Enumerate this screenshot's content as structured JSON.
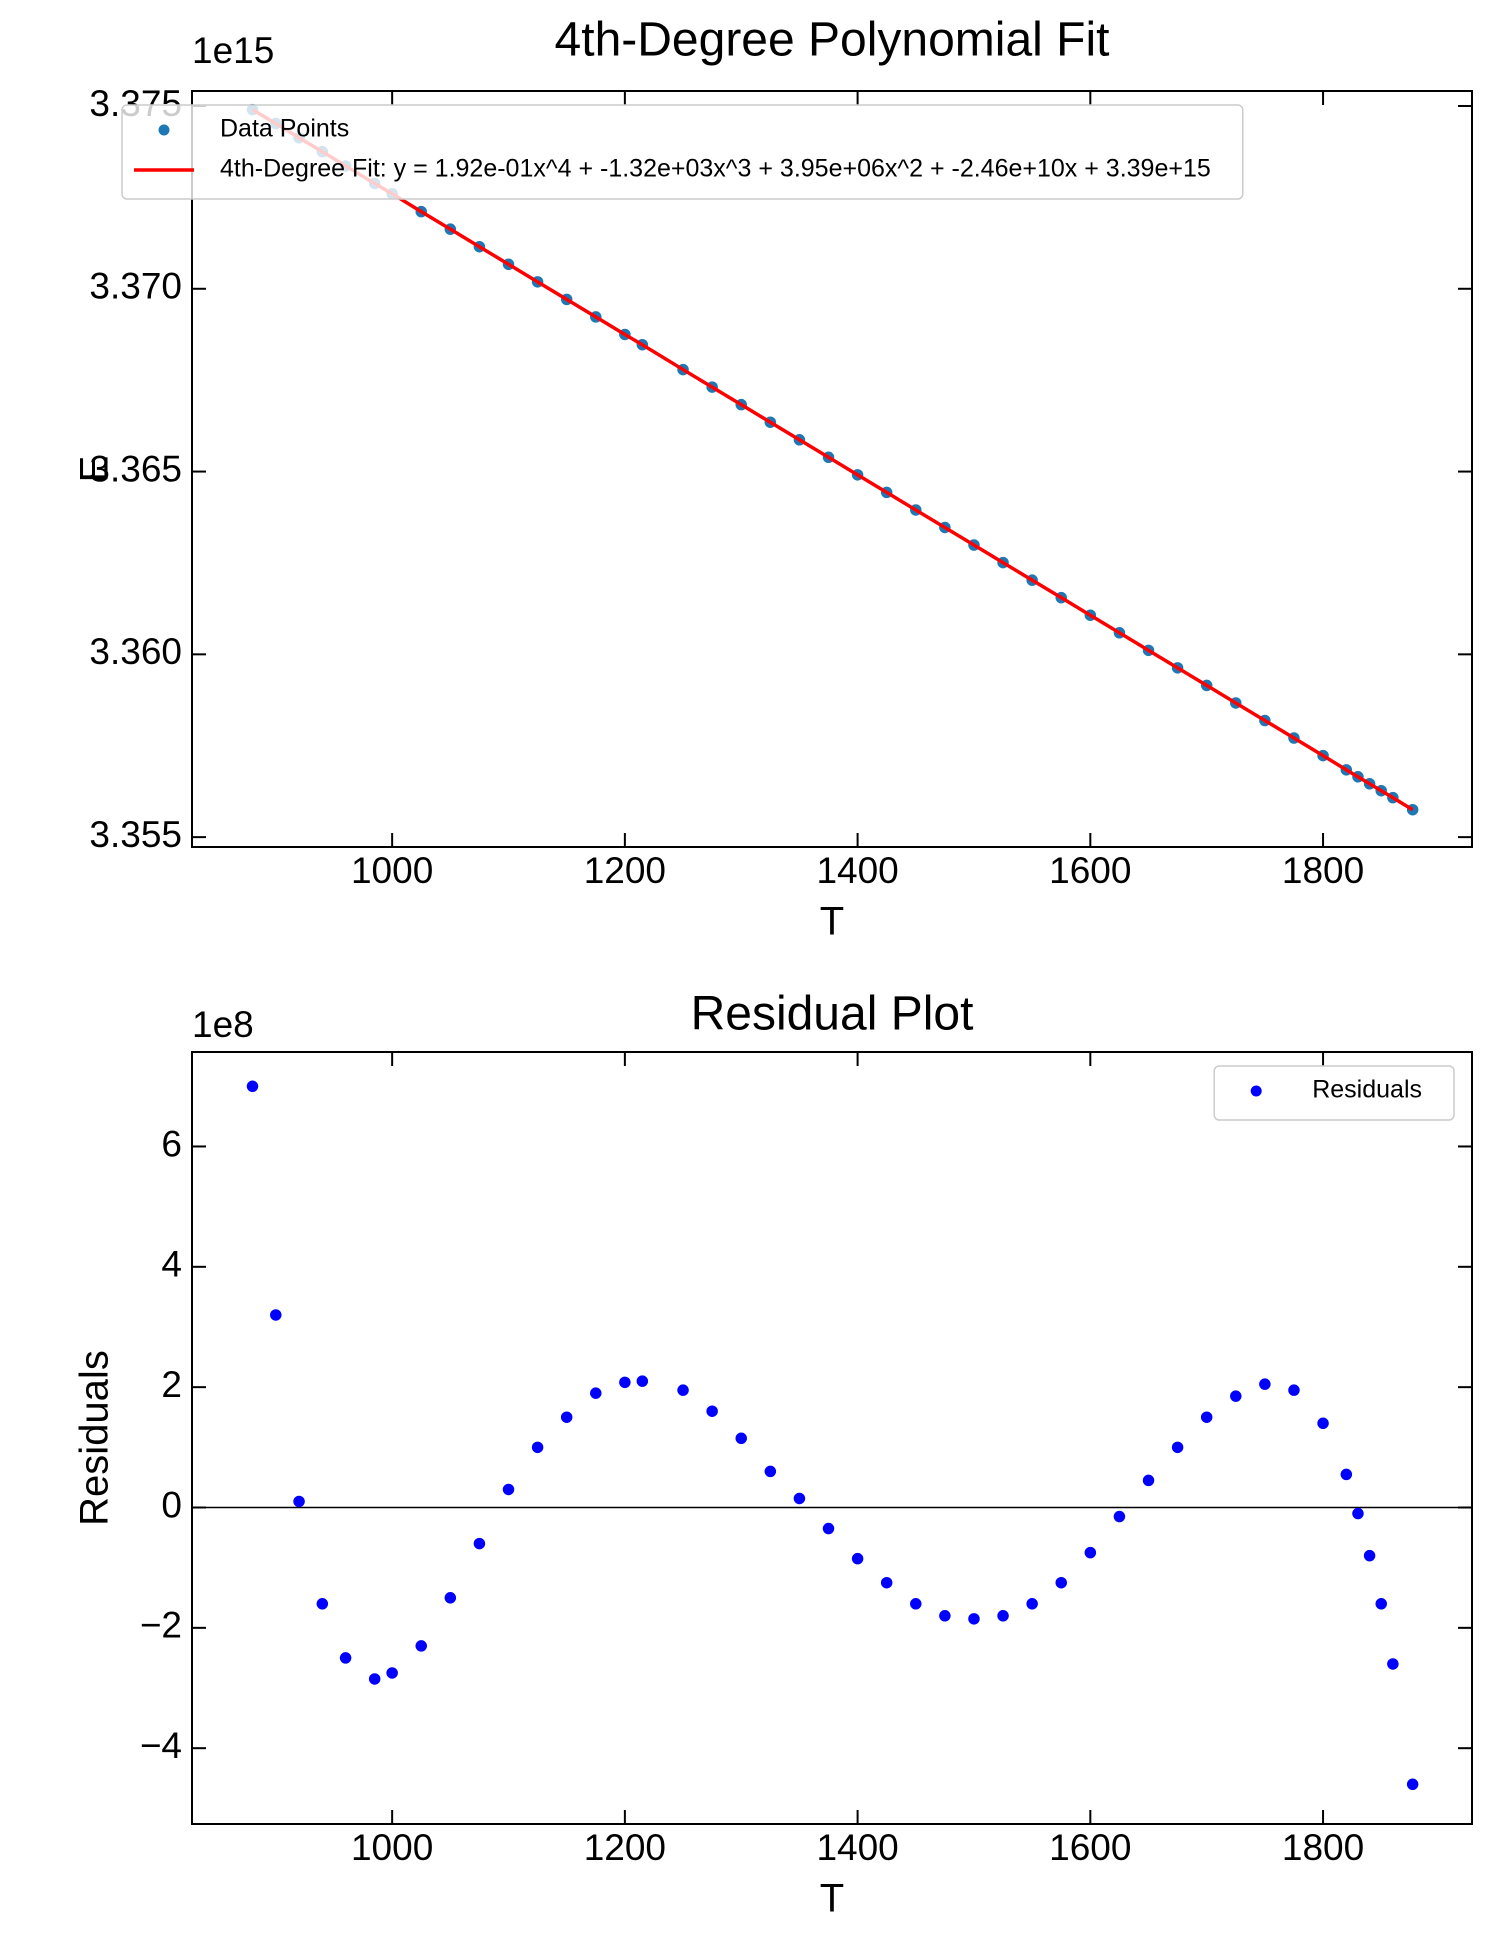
{
  "chart_data": [
    {
      "type": "scatter",
      "title": "4th-Degree Polynomial Fit",
      "x_label": "T",
      "y_label": "E",
      "y_offset_label": "1e15",
      "x": [
        880,
        900,
        920,
        940,
        960,
        985,
        1000,
        1025,
        1050,
        1075,
        1100,
        1125,
        1150,
        1175,
        1200,
        1215,
        1250,
        1275,
        1300,
        1325,
        1350,
        1375,
        1400,
        1425,
        1450,
        1475,
        1500,
        1525,
        1550,
        1575,
        1600,
        1625,
        1650,
        1675,
        1700,
        1725,
        1750,
        1775,
        1800,
        1820,
        1830,
        1840,
        1850,
        1860,
        1877
      ],
      "series": [
        {
          "name": "Data Points",
          "color": "#1f77b4",
          "mode": "markers",
          "values": [
            3.3749,
            3.37452,
            3.37413,
            3.37375,
            3.37336,
            3.37288,
            3.3726,
            3.37211,
            3.37163,
            3.37115,
            3.37067,
            3.37019,
            3.36971,
            3.36923,
            3.36875,
            3.36847,
            3.36779,
            3.36731,
            3.36683,
            3.36635,
            3.36587,
            3.36539,
            3.36491,
            3.36443,
            3.36395,
            3.36347,
            3.36299,
            3.36251,
            3.36203,
            3.36155,
            3.36107,
            3.36059,
            3.36011,
            3.35963,
            3.35915,
            3.35867,
            3.35819,
            3.35771,
            3.35723,
            3.35684,
            3.35665,
            3.35646,
            3.35627,
            3.35608,
            3.35575
          ]
        },
        {
          "name": "4th-Degree Fit: y = 1.92e-01x^4 + -1.32e+03x^3 + 3.95e+06x^2 + -2.46e+10x + 3.39e+15",
          "color": "#ff0000",
          "mode": "line",
          "values": [
            3.3749,
            3.37452,
            3.37413,
            3.37375,
            3.37336,
            3.37288,
            3.3726,
            3.37211,
            3.37163,
            3.37115,
            3.37067,
            3.37019,
            3.36971,
            3.36923,
            3.36875,
            3.36847,
            3.36779,
            3.36731,
            3.36683,
            3.36635,
            3.36587,
            3.36539,
            3.36491,
            3.36443,
            3.36395,
            3.36347,
            3.36299,
            3.36251,
            3.36203,
            3.36155,
            3.36107,
            3.36059,
            3.36011,
            3.35963,
            3.35915,
            3.35867,
            3.35819,
            3.35771,
            3.35723,
            3.35684,
            3.35665,
            3.35646,
            3.35627,
            3.35608,
            3.35575
          ]
        }
      ],
      "xlim": [
        828,
        1928
      ],
      "xticks": [
        1000,
        1200,
        1400,
        1600,
        1800
      ],
      "ylim": [
        3.35473,
        3.37541
      ],
      "yticks": [
        3.355,
        {
          "value": 3.36,
          "label": "3.360"
        },
        3.365,
        {
          "value": 3.37,
          "label": "3.370"
        },
        3.375
      ],
      "legend": "upper left"
    },
    {
      "type": "scatter",
      "title": "Residual Plot",
      "x_label": "T",
      "y_label": "Residuals",
      "y_offset_label": "1e8",
      "x": [
        880,
        900,
        920,
        940,
        960,
        985,
        1000,
        1025,
        1050,
        1075,
        1100,
        1125,
        1150,
        1175,
        1200,
        1215,
        1250,
        1275,
        1300,
        1325,
        1350,
        1375,
        1400,
        1425,
        1450,
        1475,
        1500,
        1525,
        1550,
        1575,
        1600,
        1625,
        1650,
        1675,
        1700,
        1725,
        1750,
        1775,
        1800,
        1820,
        1830,
        1840,
        1850,
        1860,
        1877
      ],
      "series": [
        {
          "name": "Residuals",
          "color": "#0000ff",
          "mode": "markers",
          "values": [
            7.0,
            3.2,
            0.1,
            -1.6,
            -2.5,
            -2.85,
            -2.75,
            -2.3,
            -1.5,
            -0.6,
            0.3,
            1.0,
            1.5,
            1.9,
            2.08,
            2.1,
            1.95,
            1.6,
            1.15,
            0.6,
            0.15,
            -0.35,
            -0.85,
            -1.25,
            -1.6,
            -1.8,
            -1.85,
            -1.8,
            -1.6,
            -1.25,
            -0.75,
            -0.15,
            0.45,
            1.0,
            1.5,
            1.85,
            2.05,
            1.95,
            1.4,
            0.55,
            -0.1,
            -0.8,
            -1.6,
            -2.6,
            -4.6
          ]
        }
      ],
      "hline": 0,
      "xlim": [
        828,
        1928
      ],
      "xticks": [
        1000,
        1200,
        1400,
        1600,
        1800
      ],
      "ylim": [
        -5.26,
        7.57
      ],
      "yticks": [
        {
          "value": -4,
          "label": "−4"
        },
        {
          "value": -2,
          "label": "−2"
        },
        0,
        2,
        4,
        6
      ],
      "legend": "upper right"
    }
  ]
}
